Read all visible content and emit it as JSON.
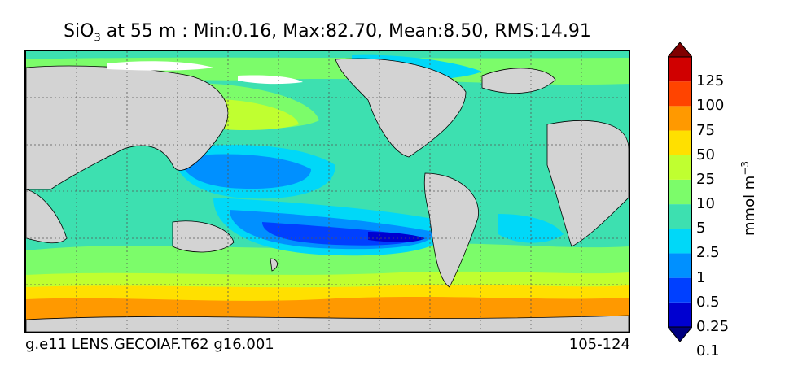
{
  "title": {
    "species": "SiO",
    "subscript": "3",
    "rest": " at 55 m : Min:0.16, Max:82.70, Mean:8.50, RMS:14.91"
  },
  "footer": {
    "case_name": "g.e11 LENS.GECOIAF.T62 g16.001",
    "years": "105-124"
  },
  "colorbar": {
    "unit_base": "mmol m",
    "unit_exp": "−3",
    "levels": [
      "125",
      "100",
      "75",
      "50",
      "25",
      "10",
      "5",
      "2.5",
      "1",
      "0.5",
      "0.25",
      "0.1"
    ],
    "colors": [
      "#000080",
      "#0000d0",
      "#0040ff",
      "#0090ff",
      "#00d8f8",
      "#3de0b0",
      "#7cfc6a",
      "#c0ff30",
      "#ffe000",
      "#ff9900",
      "#ff4400",
      "#d00000",
      "#800000"
    ]
  },
  "map": {
    "land_color": "#d3d3d3",
    "ice_color": "#ffffff",
    "gridlines": "dotted"
  }
}
